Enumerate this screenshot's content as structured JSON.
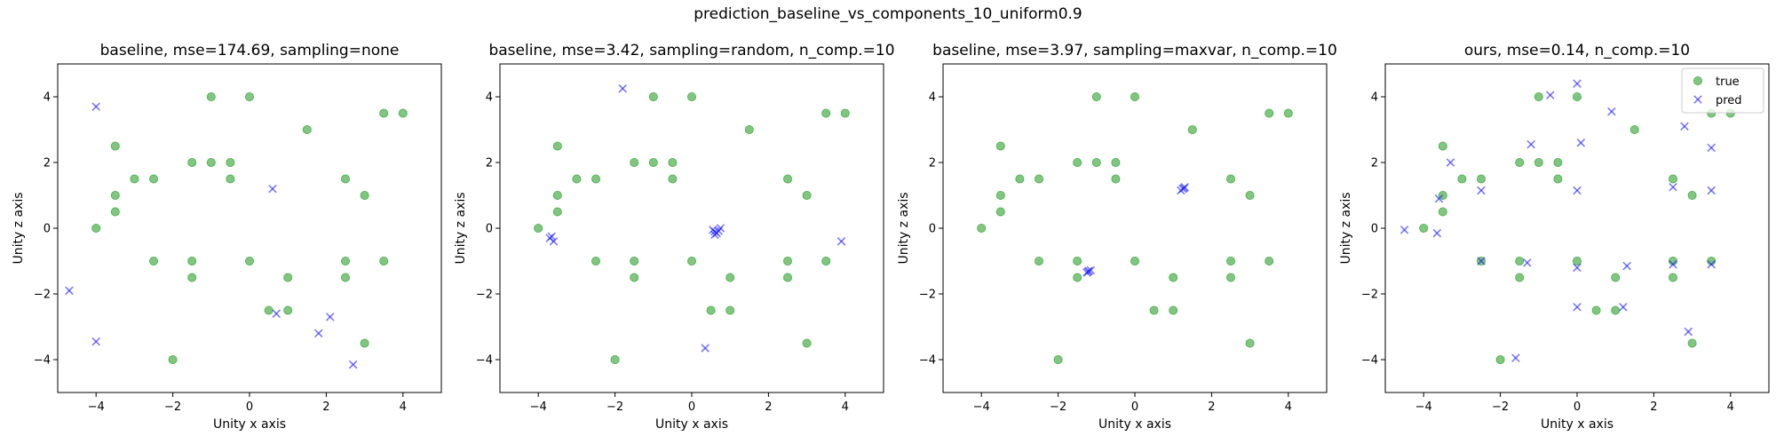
{
  "figure": {
    "suptitle": "prediction_baseline_vs_components_10_uniform0.9"
  },
  "colors": {
    "true": "#2ca02c",
    "pred": "#1f1fff"
  },
  "chart_data": [
    {
      "type": "scatter",
      "title": "baseline, mse=174.69, sampling=none",
      "xlabel": "Unity x axis",
      "ylabel": "Unity z axis",
      "xlim": [
        -5,
        5
      ],
      "ylim": [
        -5,
        5
      ],
      "xticks": [
        -4,
        -2,
        0,
        2,
        4
      ],
      "yticks": [
        -4,
        -2,
        0,
        2,
        4
      ],
      "grid": false,
      "legend": null,
      "series": [
        {
          "name": "true",
          "marker": "o",
          "points": [
            [
              -4,
              0
            ],
            [
              -3.5,
              2.5
            ],
            [
              -3.5,
              1
            ],
            [
              -3.5,
              0.5
            ],
            [
              -3,
              1.5
            ],
            [
              -2.5,
              1.5
            ],
            [
              -2.5,
              -1
            ],
            [
              -2,
              -4
            ],
            [
              -1.5,
              2
            ],
            [
              -1.5,
              -1
            ],
            [
              -1.5,
              -1.5
            ],
            [
              -1,
              4
            ],
            [
              -1,
              2
            ],
            [
              -0.5,
              2
            ],
            [
              -0.5,
              1.5
            ],
            [
              0,
              4
            ],
            [
              0,
              -1
            ],
            [
              0.5,
              -2.5
            ],
            [
              1,
              -1.5
            ],
            [
              1,
              -2.5
            ],
            [
              1.5,
              3
            ],
            [
              2.5,
              1.5
            ],
            [
              2.5,
              -1
            ],
            [
              2.5,
              -1.5
            ],
            [
              3,
              1
            ],
            [
              3,
              -3.5
            ],
            [
              3.5,
              3.5
            ],
            [
              3.5,
              -1
            ],
            [
              4,
              3.5
            ]
          ]
        },
        {
          "name": "pred",
          "marker": "x",
          "points": [
            [
              -4,
              3.7
            ],
            [
              -4.7,
              -1.9
            ],
            [
              -4,
              -3.45
            ],
            [
              0.6,
              1.2
            ],
            [
              0.7,
              -2.6
            ],
            [
              2.1,
              -2.7
            ],
            [
              1.8,
              -3.2
            ],
            [
              2.7,
              -4.15
            ]
          ]
        }
      ]
    },
    {
      "type": "scatter",
      "title": "baseline, mse=3.42, sampling=random, n_comp.=10",
      "xlabel": "Unity x axis",
      "ylabel": "Unity z axis",
      "xlim": [
        -5,
        5
      ],
      "ylim": [
        -5,
        5
      ],
      "xticks": [
        -4,
        -2,
        0,
        2,
        4
      ],
      "yticks": [
        -4,
        -2,
        0,
        2,
        4
      ],
      "grid": false,
      "legend": null,
      "series": [
        {
          "name": "true",
          "marker": "o",
          "points": [
            [
              -4,
              0
            ],
            [
              -3.5,
              2.5
            ],
            [
              -3.5,
              1
            ],
            [
              -3.5,
              0.5
            ],
            [
              -3,
              1.5
            ],
            [
              -2.5,
              1.5
            ],
            [
              -2.5,
              -1
            ],
            [
              -2,
              -4
            ],
            [
              -1.5,
              2
            ],
            [
              -1.5,
              -1
            ],
            [
              -1.5,
              -1.5
            ],
            [
              -1,
              4
            ],
            [
              -1,
              2
            ],
            [
              -0.5,
              2
            ],
            [
              -0.5,
              1.5
            ],
            [
              0,
              4
            ],
            [
              0,
              -1
            ],
            [
              0.5,
              -2.5
            ],
            [
              1,
              -1.5
            ],
            [
              1,
              -2.5
            ],
            [
              1.5,
              3
            ],
            [
              2.5,
              1.5
            ],
            [
              2.5,
              -1
            ],
            [
              2.5,
              -1.5
            ],
            [
              3,
              1
            ],
            [
              3,
              -3.5
            ],
            [
              3.5,
              3.5
            ],
            [
              3.5,
              -1
            ],
            [
              4,
              3.5
            ]
          ]
        },
        {
          "name": "pred",
          "marker": "x",
          "points": [
            [
              -1.8,
              4.25
            ],
            [
              -3.7,
              -0.3
            ],
            [
              -3.6,
              -0.4
            ],
            [
              -3.65,
              -0.25
            ],
            [
              0.6,
              -0.1
            ],
            [
              0.65,
              -0.15
            ],
            [
              0.55,
              -0.05
            ],
            [
              0.75,
              0
            ],
            [
              0.6,
              -0.2
            ],
            [
              0.7,
              -0.08
            ],
            [
              3.9,
              -0.4
            ],
            [
              0.35,
              -3.65
            ]
          ]
        }
      ]
    },
    {
      "type": "scatter",
      "title": "baseline, mse=3.97, sampling=maxvar, n_comp.=10",
      "xlabel": "Unity x axis",
      "ylabel": "Unity z axis",
      "xlim": [
        -5,
        5
      ],
      "ylim": [
        -5,
        5
      ],
      "xticks": [
        -4,
        -2,
        0,
        2,
        4
      ],
      "yticks": [
        -4,
        -2,
        0,
        2,
        4
      ],
      "grid": false,
      "legend": null,
      "series": [
        {
          "name": "true",
          "marker": "o",
          "points": [
            [
              -4,
              0
            ],
            [
              -3.5,
              2.5
            ],
            [
              -3.5,
              1
            ],
            [
              -3.5,
              0.5
            ],
            [
              -3,
              1.5
            ],
            [
              -2.5,
              1.5
            ],
            [
              -2.5,
              -1
            ],
            [
              -2,
              -4
            ],
            [
              -1.5,
              2
            ],
            [
              -1.5,
              -1
            ],
            [
              -1.5,
              -1.5
            ],
            [
              -1,
              4
            ],
            [
              -1,
              2
            ],
            [
              -0.5,
              2
            ],
            [
              -0.5,
              1.5
            ],
            [
              0,
              4
            ],
            [
              0,
              -1
            ],
            [
              0.5,
              -2.5
            ],
            [
              1,
              -1.5
            ],
            [
              1,
              -2.5
            ],
            [
              1.5,
              3
            ],
            [
              2.5,
              1.5
            ],
            [
              2.5,
              -1
            ],
            [
              2.5,
              -1.5
            ],
            [
              3,
              1
            ],
            [
              3,
              -3.5
            ],
            [
              3.5,
              3.5
            ],
            [
              3.5,
              -1
            ],
            [
              4,
              3.5
            ]
          ]
        },
        {
          "name": "pred",
          "marker": "x",
          "points": [
            [
              1.25,
              1.2
            ],
            [
              1.3,
              1.25
            ],
            [
              1.2,
              1.15
            ],
            [
              1.28,
              1.22
            ],
            [
              -1.2,
              -1.3
            ],
            [
              -1.25,
              -1.35
            ],
            [
              -1.15,
              -1.28
            ],
            [
              -1.22,
              -1.32
            ]
          ]
        }
      ]
    },
    {
      "type": "scatter",
      "title": "ours, mse=0.14, n_comp.=10",
      "xlabel": "Unity x axis",
      "ylabel": "Unity z axis",
      "xlim": [
        -5,
        5
      ],
      "ylim": [
        -5,
        5
      ],
      "xticks": [
        -4,
        -2,
        0,
        2,
        4
      ],
      "yticks": [
        -4,
        -2,
        0,
        2,
        4
      ],
      "grid": false,
      "legend": "top-right",
      "series": [
        {
          "name": "true",
          "marker": "o",
          "points": [
            [
              -4,
              0
            ],
            [
              -3.5,
              2.5
            ],
            [
              -3.5,
              1
            ],
            [
              -3.5,
              0.5
            ],
            [
              -3,
              1.5
            ],
            [
              -2.5,
              1.5
            ],
            [
              -2.5,
              -1
            ],
            [
              -2,
              -4
            ],
            [
              -1.5,
              2
            ],
            [
              -1.5,
              -1
            ],
            [
              -1.5,
              -1.5
            ],
            [
              -1,
              4
            ],
            [
              -1,
              2
            ],
            [
              -0.5,
              2
            ],
            [
              -0.5,
              1.5
            ],
            [
              0,
              4
            ],
            [
              0,
              -1
            ],
            [
              0.5,
              -2.5
            ],
            [
              1,
              -1.5
            ],
            [
              1,
              -2.5
            ],
            [
              1.5,
              3
            ],
            [
              2.5,
              1.5
            ],
            [
              2.5,
              -1
            ],
            [
              2.5,
              -1.5
            ],
            [
              3,
              1
            ],
            [
              3,
              -3.5
            ],
            [
              3.5,
              3.5
            ],
            [
              3.5,
              -1
            ],
            [
              4,
              3.5
            ]
          ]
        },
        {
          "name": "pred",
          "marker": "x",
          "points": [
            [
              -4.5,
              -0.05
            ],
            [
              -3.65,
              -0.15
            ],
            [
              -3.6,
              0.9
            ],
            [
              -3.3,
              2
            ],
            [
              -2.5,
              1.15
            ],
            [
              -2.5,
              -1
            ],
            [
              -1.2,
              2.55
            ],
            [
              -1.3,
              -1.05
            ],
            [
              -0.7,
              4.05
            ],
            [
              0,
              4.4
            ],
            [
              0.1,
              2.6
            ],
            [
              0,
              1.15
            ],
            [
              0,
              -1.2
            ],
            [
              0,
              -2.4
            ],
            [
              0.9,
              3.55
            ],
            [
              1.2,
              -2.4
            ],
            [
              1.3,
              -1.15
            ],
            [
              2.5,
              1.25
            ],
            [
              2.5,
              -1.1
            ],
            [
              2.8,
              3.1
            ],
            [
              2.9,
              -3.15
            ],
            [
              3.5,
              2.45
            ],
            [
              3.5,
              1.15
            ],
            [
              3.5,
              -1.1
            ],
            [
              -1.6,
              -3.95
            ]
          ]
        }
      ]
    }
  ]
}
